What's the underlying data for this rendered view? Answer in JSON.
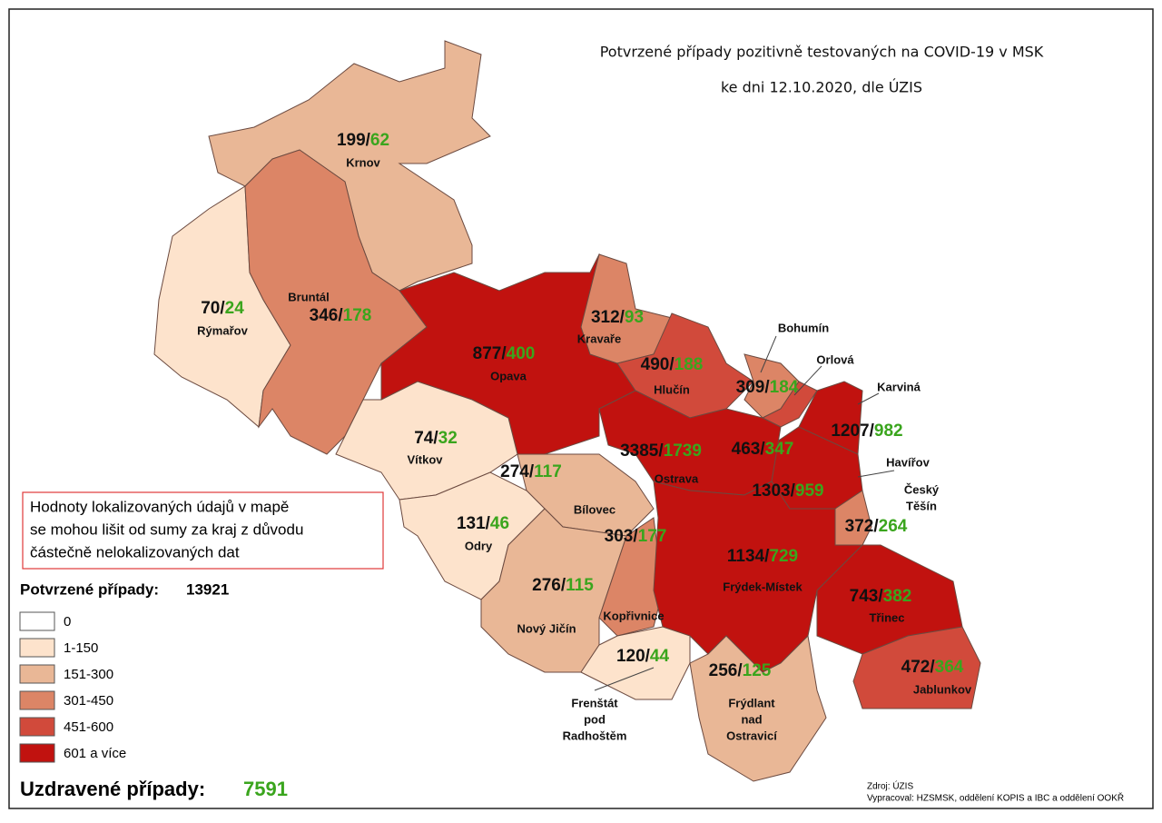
{
  "title": [
    "Potvrzené případy pozitivně testovaných na COVID-19 v MSK",
    "ke dni 12.10.2020, dle ÚZIS"
  ],
  "separator": "/",
  "note": [
    "Hodnoty lokalizovaných údajů v mapě",
    "se mohou lišit od sumy za kraj z důvodu",
    "částečně nelokalizovaných dat"
  ],
  "legend": {
    "title": "Potvrzené případy:",
    "total": 13921,
    "items": [
      {
        "label": "0",
        "color": "#ffffff"
      },
      {
        "label": "1-150",
        "color": "#fde3cc"
      },
      {
        "label": "151-300",
        "color": "#e9b796"
      },
      {
        "label": "301-450",
        "color": "#dc8566"
      },
      {
        "label": "451-600",
        "color": "#d14a3b"
      },
      {
        "label": "601 a více",
        "color": "#c1120f"
      }
    ]
  },
  "recovered": {
    "label": "Uzdravené případy:",
    "total": 7591
  },
  "source": [
    "Zdroj: ÚZIS",
    "Vypracoval: HZSMSK, oddělení KOPIS a IBC a oddělení OOKŘ"
  ],
  "regions": [
    {
      "name": "Krnov",
      "confirmed": 199,
      "recovered": 62,
      "color": "#e9b796"
    },
    {
      "name": "Rýmařov",
      "confirmed": 70,
      "recovered": 24,
      "color": "#fde3cc"
    },
    {
      "name": "Bruntál",
      "confirmed": 346,
      "recovered": 178,
      "color": "#dc8566"
    },
    {
      "name": "Opava",
      "confirmed": 877,
      "recovered": 400,
      "color": "#c1120f"
    },
    {
      "name": "Kravaře",
      "confirmed": 312,
      "recovered": 93,
      "color": "#dc8566"
    },
    {
      "name": "Hlučín",
      "confirmed": 490,
      "recovered": 188,
      "color": "#d14a3b"
    },
    {
      "name": "Bohumín",
      "confirmed": 309,
      "recovered": 184,
      "color": "#dc8566"
    },
    {
      "name": "Orlová",
      "confirmed": 463,
      "recovered": 347,
      "color": "#d14a3b"
    },
    {
      "name": "Karviná",
      "confirmed": 1207,
      "recovered": 982,
      "color": "#c1120f"
    },
    {
      "name": "Havířov",
      "confirmed": 1303,
      "recovered": 959,
      "color": "#c1120f"
    },
    {
      "name": [
        "Český",
        "Těšín"
      ],
      "confirmed": 372,
      "recovered": 264,
      "color": "#dc8566"
    },
    {
      "name": "Vítkov",
      "confirmed": 74,
      "recovered": 32,
      "color": "#fde3cc"
    },
    {
      "name": "Ostrava",
      "confirmed": 3385,
      "recovered": 1739,
      "color": "#c1120f"
    },
    {
      "name": "Bílovec",
      "confirmed": 274,
      "recovered": 117,
      "color": "#e9b796"
    },
    {
      "name": "Odry",
      "confirmed": 131,
      "recovered": 46,
      "color": "#fde3cc"
    },
    {
      "name": "Kopřivnice",
      "confirmed": 303,
      "recovered": 177,
      "color": "#dc8566"
    },
    {
      "name": "Nový Jičín",
      "confirmed": 276,
      "recovered": 115,
      "color": "#e9b796"
    },
    {
      "name": "Frýdek-Místek",
      "confirmed": 1134,
      "recovered": 729,
      "color": "#c1120f"
    },
    {
      "name": "Třinec",
      "confirmed": 743,
      "recovered": 382,
      "color": "#c1120f"
    },
    {
      "name": "Jablunkov",
      "confirmed": 472,
      "recovered": 364,
      "color": "#d14a3b"
    },
    {
      "name": [
        "Frenštát",
        "pod",
        "Radhoštěm"
      ],
      "confirmed": 120,
      "recovered": 44,
      "color": "#fde3cc"
    },
    {
      "name": [
        "Frýdlant",
        "nad",
        "Ostravicí"
      ],
      "confirmed": 256,
      "recovered": 125,
      "color": "#e9b796"
    }
  ]
}
